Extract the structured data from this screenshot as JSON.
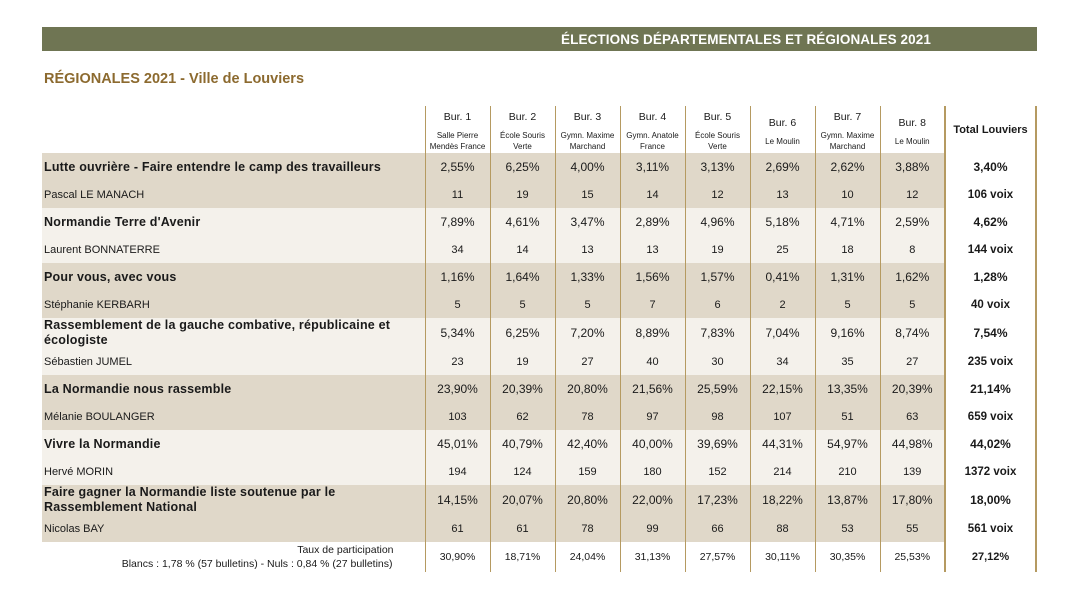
{
  "banner": {
    "title": "ÉLECTIONS DÉPARTEMENTALES ET RÉGIONALES 2021"
  },
  "subtitle": "RÉGIONALES 2021 - Ville de Louviers",
  "columns": [
    {
      "bureau": "Bur. 1",
      "lieu": "Salle Pierre Mendès France"
    },
    {
      "bureau": "Bur. 2",
      "lieu": "École Souris Verte"
    },
    {
      "bureau": "Bur. 3",
      "lieu": "Gymn. Maxime Marchand"
    },
    {
      "bureau": "Bur. 4",
      "lieu": "Gymn. Anatole France"
    },
    {
      "bureau": "Bur. 5",
      "lieu": "École Souris Verte"
    },
    {
      "bureau": "Bur. 6",
      "lieu": "Le Moulin"
    },
    {
      "bureau": "Bur. 7",
      "lieu": "Gymn. Maxime Marchand"
    },
    {
      "bureau": "Bur. 8",
      "lieu": "Le Moulin"
    }
  ],
  "total_header": "Total Louviers",
  "lists": [
    {
      "name": "Lutte ouvrière - Faire entendre le camp des travailleurs",
      "candidate": "Pascal LE MANACH",
      "pcts": [
        "2,55%",
        "6,25%",
        "4,00%",
        "3,11%",
        "3,13%",
        "2,69%",
        "2,62%",
        "3,88%"
      ],
      "total_pct": "3,40%",
      "votes": [
        "11",
        "19",
        "15",
        "14",
        "12",
        "13",
        "10",
        "12"
      ],
      "total_votes": "106 voix"
    },
    {
      "name": "Normandie Terre d'Avenir",
      "candidate": "Laurent BONNATERRE",
      "pcts": [
        "7,89%",
        "4,61%",
        "3,47%",
        "2,89%",
        "4,96%",
        "5,18%",
        "4,71%",
        "2,59%"
      ],
      "total_pct": "4,62%",
      "votes": [
        "34",
        "14",
        "13",
        "13",
        "19",
        "25",
        "18",
        "8"
      ],
      "total_votes": "144 voix"
    },
    {
      "name": "Pour vous, avec vous",
      "candidate": "Stéphanie KERBARH",
      "pcts": [
        "1,16%",
        "1,64%",
        "1,33%",
        "1,56%",
        "1,57%",
        "0,41%",
        "1,31%",
        "1,62%"
      ],
      "total_pct": "1,28%",
      "votes": [
        "5",
        "5",
        "5",
        "7",
        "6",
        "2",
        "5",
        "5"
      ],
      "total_votes": "40 voix"
    },
    {
      "name": "Rassemblement de la gauche combative, républicaine et écologiste",
      "candidate": "Sébastien JUMEL",
      "pcts": [
        "5,34%",
        "6,25%",
        "7,20%",
        "8,89%",
        "7,83%",
        "7,04%",
        "9,16%",
        "8,74%"
      ],
      "total_pct": "7,54%",
      "votes": [
        "23",
        "19",
        "27",
        "40",
        "30",
        "34",
        "35",
        "27"
      ],
      "total_votes": "235 voix"
    },
    {
      "name": "La Normandie nous rassemble",
      "candidate": "Mélanie BOULANGER",
      "pcts": [
        "23,90%",
        "20,39%",
        "20,80%",
        "21,56%",
        "25,59%",
        "22,15%",
        "13,35%",
        "20,39%"
      ],
      "total_pct": "21,14%",
      "votes": [
        "103",
        "62",
        "78",
        "97",
        "98",
        "107",
        "51",
        "63"
      ],
      "total_votes": "659 voix"
    },
    {
      "name": "Vivre la Normandie",
      "candidate": "Hervé MORIN",
      "pcts": [
        "45,01%",
        "40,79%",
        "42,40%",
        "40,00%",
        "39,69%",
        "44,31%",
        "54,97%",
        "44,98%"
      ],
      "total_pct": "44,02%",
      "votes": [
        "194",
        "124",
        "159",
        "180",
        "152",
        "214",
        "210",
        "139"
      ],
      "total_votes": "1372 voix"
    },
    {
      "name": "Faire gagner la Normandie liste soutenue par le Rassemblement National",
      "candidate": "Nicolas BAY",
      "pcts": [
        "14,15%",
        "20,07%",
        "20,80%",
        "22,00%",
        "17,23%",
        "18,22%",
        "13,87%",
        "17,80%"
      ],
      "total_pct": "18,00%",
      "votes": [
        "61",
        "61",
        "78",
        "99",
        "66",
        "88",
        "53",
        "55"
      ],
      "total_votes": "561 voix"
    }
  ],
  "footer": {
    "participation_label": "Taux de participation",
    "blancs_nuls": "Blancs : 1,78 % (57 bulletins) - Nuls : 0,84 % (27 bulletins)",
    "participation": [
      "30,90%",
      "18,71%",
      "24,04%",
      "31,13%",
      "27,57%",
      "30,11%",
      "30,35%",
      "25,53%"
    ],
    "total_participation": "27,12%"
  }
}
